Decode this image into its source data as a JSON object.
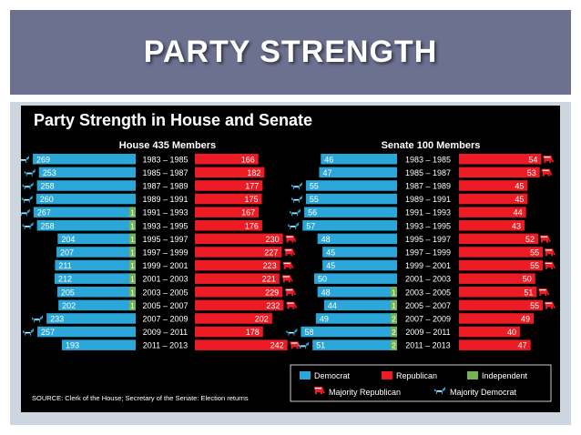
{
  "slide": {
    "title": "PARTY STRENGTH"
  },
  "chart_data": {
    "type": "bar",
    "title": "Party Strength in House and Senate",
    "source": "SOURCE: Clerk of the House; Secretary of the Senate: Election returns",
    "categories": [
      "1983 – 1985",
      "1985 – 1987",
      "1987 – 1989",
      "1989 – 1991",
      "1991 – 1993",
      "1993 – 1995",
      "1995 – 1997",
      "1997 – 1999",
      "1999 – 2001",
      "2001 – 2003",
      "2003 – 2005",
      "2005 – 2007",
      "2007 – 2009",
      "2009 – 2011",
      "2011 – 2013"
    ],
    "house": {
      "title": "House 435 Members",
      "series": [
        {
          "name": "Democrat",
          "values": [
            269,
            253,
            258,
            260,
            267,
            258,
            204,
            207,
            211,
            212,
            205,
            202,
            233,
            257,
            193
          ]
        },
        {
          "name": "Independent",
          "values": [
            0,
            0,
            0,
            0,
            1,
            1,
            1,
            1,
            1,
            1,
            1,
            1,
            0,
            0,
            0
          ]
        },
        {
          "name": "Republican",
          "values": [
            166,
            182,
            177,
            175,
            167,
            176,
            230,
            227,
            223,
            221,
            229,
            232,
            202,
            178,
            242
          ]
        }
      ]
    },
    "senate": {
      "title": "Senate 100 Members",
      "series": [
        {
          "name": "Democrat",
          "values": [
            46,
            47,
            55,
            55,
            56,
            57,
            48,
            45,
            45,
            50,
            48,
            44,
            49,
            58,
            51
          ]
        },
        {
          "name": "Independent",
          "values": [
            0,
            0,
            0,
            0,
            0,
            0,
            0,
            0,
            0,
            0,
            1,
            1,
            2,
            2,
            2
          ]
        },
        {
          "name": "Republican",
          "values": [
            54,
            53,
            45,
            45,
            44,
            43,
            52,
            55,
            55,
            50,
            51,
            55,
            49,
            40,
            47
          ]
        }
      ]
    },
    "legend": {
      "items": [
        {
          "name": "Democrat",
          "color": "#2aa6d8"
        },
        {
          "name": "Republican",
          "color": "#ed1c24"
        },
        {
          "name": "Independent",
          "color": "#77b254"
        }
      ],
      "majority_republican": "Majority Republican",
      "majority_democrat": "Majority Democrat",
      "placement": "bottom-right"
    },
    "colors": {
      "democrat": "#2aa6d8",
      "republican": "#ed1c24",
      "independent": "#77b254",
      "background": "#000000"
    }
  }
}
